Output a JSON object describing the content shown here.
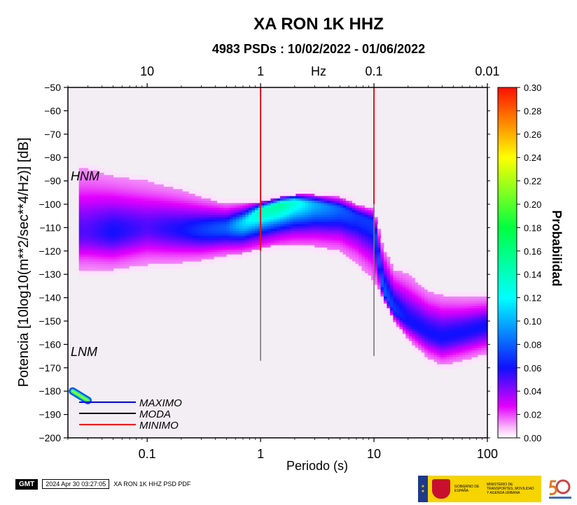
{
  "header": {
    "title": "XA RON 1K HHZ",
    "subtitle": "4983 PSDs : 10/02/2022 - 01/06/2022"
  },
  "chart_data": {
    "type": "heatmap",
    "x_scale": "log",
    "xlabel": "Periodo (s)",
    "xlim": [
      0.02,
      100
    ],
    "xticks": [
      "0.1",
      "1",
      "10",
      "100"
    ],
    "top_axis_label": "Hz",
    "top_ticks": [
      "10",
      "1",
      "0.1",
      "0.01"
    ],
    "ylabel": "Potencia [10log10(m**2/sec**4/Hz)] [dB]",
    "ylim": [
      -200,
      -50
    ],
    "yticks": [
      "−50",
      "−60",
      "−70",
      "−80",
      "−90",
      "−100",
      "−110",
      "−120",
      "−130",
      "−140",
      "−150",
      "−160",
      "−170",
      "−180",
      "−190",
      "−200"
    ],
    "colorbar": {
      "label": "Probabilidad",
      "range": [
        0,
        0.3
      ],
      "ticks": [
        "0.00",
        "0.02",
        "0.04",
        "0.06",
        "0.08",
        "0.10",
        "0.12",
        "0.14",
        "0.16",
        "0.18",
        "0.20",
        "0.22",
        "0.24",
        "0.26",
        "0.28",
        "0.30"
      ]
    },
    "annotations": {
      "hnm": "HNM",
      "lnm": "LNM"
    },
    "legend": {
      "position": "bottom-left",
      "items": [
        {
          "label": "MAXIMO",
          "color": "#0000ff"
        },
        {
          "label": "MODA",
          "color": "#000000"
        },
        {
          "label": "MINIMO",
          "color": "#ff0000"
        }
      ]
    },
    "vertical_markers": [
      {
        "period": 1,
        "red": [
          -50,
          -120
        ],
        "gray": [
          -120,
          -167
        ]
      },
      {
        "period": 10,
        "red": [
          -50,
          -100
        ],
        "gray": [
          -100,
          -165
        ]
      }
    ],
    "psd_distribution": {
      "period": [
        0.03,
        0.05,
        0.1,
        0.2,
        0.3,
        0.5,
        0.7,
        1,
        1.5,
        2,
        3,
        5,
        7,
        10,
        12,
        15,
        20,
        30,
        40,
        60,
        100
      ],
      "upper_db": [
        -85,
        -88,
        -90,
        -94,
        -97,
        -100,
        -100,
        -99,
        -97,
        -96,
        -96,
        -97,
        -100,
        -102,
        -118,
        -128,
        -130,
        -137,
        -139,
        -140,
        -140
      ],
      "lower_db": [
        -128,
        -128,
        -126,
        -125,
        -124,
        -122,
        -121,
        -119,
        -117,
        -117,
        -118,
        -120,
        -125,
        -133,
        -140,
        -150,
        -158,
        -166,
        -169,
        -167,
        -164
      ],
      "mode_db": [
        -112,
        -112,
        -110,
        -111,
        -111,
        -110,
        -108,
        -103,
        -100,
        -99,
        -100,
        -102,
        -105,
        -108,
        -137,
        -145,
        -150,
        -155,
        -157,
        -155,
        -152
      ],
      "mode_probability": [
        0.05,
        0.06,
        0.05,
        0.06,
        0.07,
        0.08,
        0.11,
        0.14,
        0.15,
        0.13,
        0.1,
        0.08,
        0.07,
        0.07,
        0.08,
        0.07,
        0.06,
        0.06,
        0.06,
        0.06,
        0.06
      ]
    },
    "low_blob": {
      "period": [
        0.022,
        0.03
      ],
      "db": [
        -180,
        -184
      ],
      "probability": 0.22
    }
  },
  "footer": {
    "gmt": "GMT",
    "timestamp": "2024 Apr 30 03:27:05",
    "caption": "XA RON 1K HHZ PSD PDF",
    "gov_line1": "GOBIERNO DE ESPAÑA",
    "gov_line2": "MINISTERIO DE TRANSPORTES, MOVILIDAD Y AGENDA URBANA"
  }
}
